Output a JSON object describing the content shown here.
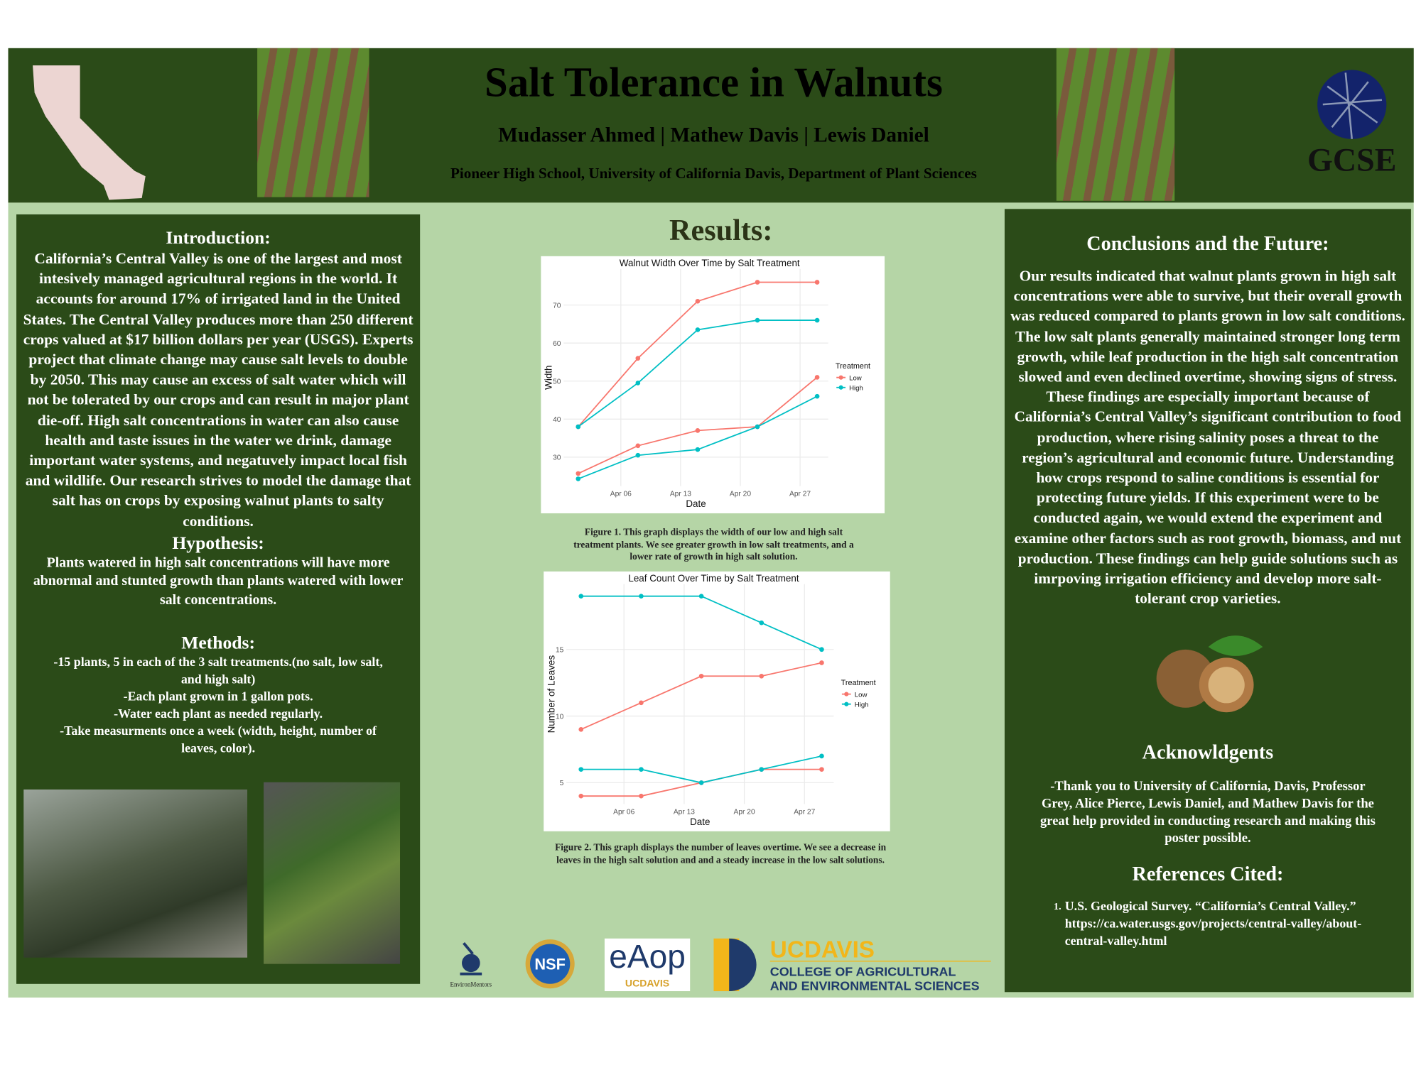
{
  "header": {
    "title": "Salt Tolerance in Walnuts",
    "authors": "Mudasser Ahmed | Mathew Davis | Lewis Daniel",
    "affiliation": "Pioneer High School, University of California Davis, Department of Plant Sciences"
  },
  "logos": {
    "gcse": "GCSE",
    "environmentors": "EnvironMentors",
    "nsf": "NSF",
    "eaop": "eAop",
    "eaop_sub": "UCDAVIS",
    "ucdavis": "UCDAVIS",
    "college": [
      "COLLEGE OF AGRICULTURAL",
      "AND ENVIRONMENTAL SCIENCES"
    ]
  },
  "left": {
    "intro_heading": "Introduction:",
    "intro_text": "California’s Central Valley is one of the largest and most intesively managed agricultural regions in the world. It accounts for around 17% of irrigated land in the United States. The Central Valley produces more than 250 different crops valued at $17 billion dollars per year (USGS). Experts project that climate change may cause salt levels to double by 2050. This may cause an excess of salt water which will not be tolerated by our crops and can result in major plant die-off.  High salt concentrations in water can also cause health and taste issues in the water we drink, damage important water systems, and negatuvely impact local fish and wildlife.  Our research strives to model the damage that salt has on crops by exposing walnut plants to salty conditions.",
    "hypothesis_heading": "Hypothesis:",
    "hypothesis_text": "Plants watered in high salt concentrations will have more abnormal and stunted growth than plants watered with lower salt concentrations.",
    "methods_heading": "Methods:",
    "methods": [
      "-15 plants, 5 in each of the 3 salt treatments.(no salt, low salt, and high salt)",
      "-Each plant grown in 1 gallon pots.",
      "-Water each plant as needed regularly.",
      "-Take measurments once a week (width, height, number of leaves, color)."
    ]
  },
  "results": {
    "heading": "Results:",
    "captions": [
      "Figure 1. This graph displays the width of our low and high salt treatment plants. We see greater growth in low salt treatments, and a lower rate of growth in high salt solution.",
      "Figure 2. This graph displays the number of leaves overtime. We see a decrease in leaves in the high salt solution and and a steady increase in the low salt solutions."
    ]
  },
  "right": {
    "conclusions_heading": "Conclusions and the Future:",
    "conclusions_text": "Our results indicated that walnut plants grown in high salt concentrations were able to survive, but their overall growth was reduced compared to plants grown in low salt conditions. The low salt plants generally maintained stronger long term growth, while leaf production in the high salt concentration slowed and even declined overtime, showing signs of stress. These findings are especially important because of California’s Central Valley’s significant contribution to food production, where rising salinity poses a threat to the region’s agricultural and economic future. Understanding how crops respond to saline conditions is essential for protecting future yields. If this experiment were to be conducted again, we would extend the experiment and examine other factors such as root growth, biomass, and nut production.  These findings can help guide solutions such as imrpoving irrigation efficiency and develop more salt-tolerant crop varieties.",
    "ack_heading": "Acknowldgents",
    "ack_text": "-Thank you to University of California, Davis, Professor Grey, Alice Pierce, Lewis Daniel, and Mathew Davis for the great help provided in conducting research and making this poster possible.",
    "refs_heading": "References Cited:",
    "refs": [
      {
        "number": "1.",
        "text": "U.S. Geological Survey. “California’s Central Valley.” https://ca.water.usgs.gov/projects/central-valley/about-central-valley.html"
      }
    ]
  },
  "chart_data": [
    {
      "type": "line",
      "title": "Walnut Width Over Time by Salt Treatment",
      "x_label": "Date",
      "y_label": "Width",
      "legend_title": "Treatment",
      "legend": "right",
      "grid": true,
      "x": [
        1,
        8,
        15,
        22,
        29
      ],
      "xlim": [
        -0.7,
        30.3
      ],
      "xticks": [
        {
          "value": 6,
          "label": "Apr 06"
        },
        {
          "value": 13,
          "label": "Apr 13"
        },
        {
          "value": 20,
          "label": "Apr 20"
        },
        {
          "value": 27,
          "label": "Apr 27"
        }
      ],
      "ylim": [
        22.4,
        79.5
      ],
      "yticks": [
        30,
        40,
        50,
        60,
        70
      ],
      "series": [
        {
          "name": "Low",
          "color": "#f8766d",
          "values": [
            38,
            56,
            71,
            76,
            76
          ]
        },
        {
          "name": "High",
          "color": "#00bfc4",
          "values": [
            38,
            49.5,
            63.5,
            66,
            66
          ]
        },
        {
          "color": "#f8766d",
          "values": [
            25.7,
            33,
            37,
            38,
            51
          ]
        },
        {
          "color": "#00bfc4",
          "values": [
            24.3,
            30.5,
            32,
            38,
            46
          ]
        }
      ]
    },
    {
      "type": "line",
      "title": "Leaf Count Over Time by Salt Treatment",
      "x_label": "Date",
      "y_label": "Number of Leaves",
      "legend_title": "Treatment",
      "legend": "right",
      "grid": true,
      "x": [
        1,
        8,
        15,
        22,
        29
      ],
      "xlim": [
        -0.7,
        30.4
      ],
      "xticks": [
        {
          "value": 6,
          "label": "Apr 06"
        },
        {
          "value": 13,
          "label": "Apr 13"
        },
        {
          "value": 20,
          "label": "Apr 20"
        },
        {
          "value": 27,
          "label": "Apr 27"
        }
      ],
      "ylim": [
        3.4,
        19.9
      ],
      "yticks": [
        5,
        10,
        15
      ],
      "series": [
        {
          "name": "Low",
          "color": "#f8766d",
          "values": [
            9,
            11,
            13,
            13,
            14
          ]
        },
        {
          "name": "High",
          "color": "#00bfc4",
          "values": [
            19,
            19,
            19,
            17,
            15
          ]
        },
        {
          "color": "#f8766d",
          "values": [
            4,
            4,
            5,
            6,
            6
          ]
        },
        {
          "color": "#00bfc4",
          "values": [
            6,
            6,
            5,
            6,
            7
          ]
        }
      ]
    }
  ]
}
